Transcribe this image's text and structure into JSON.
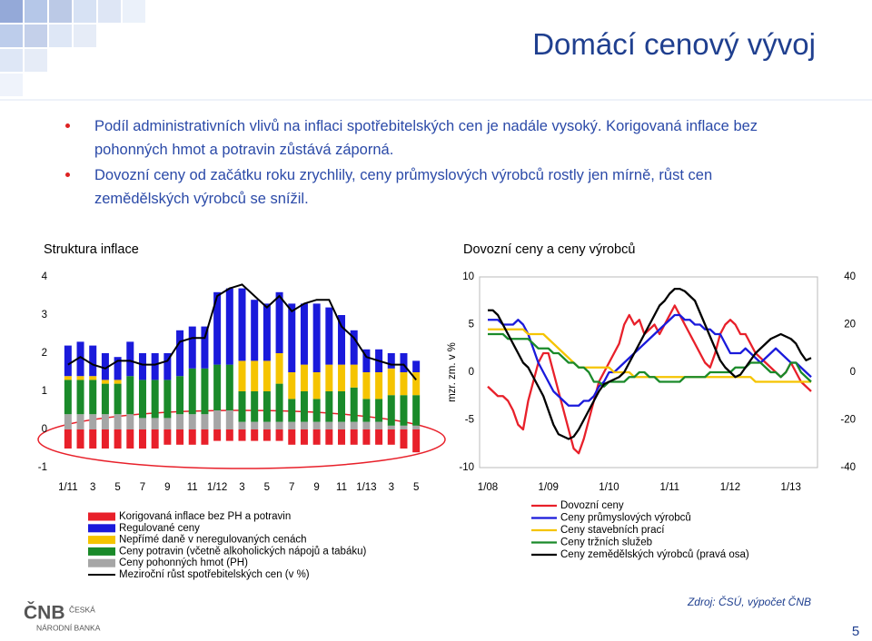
{
  "title": "Domácí cenový vývoj",
  "bullets": [
    "Podíl administrativních vlivů na inflaci spotřebitelských cen je nadále vysoký. Korigovaná inflace bez pohonných hmot a potravin zůstává záporná.",
    "Dovozní ceny od začátku roku zrychlily, ceny průmyslových výrobců rostly jen mírně, růst cen zemědělských výrobců se snížil."
  ],
  "source": "Zdroj: ČSÚ, výpočet ČNB",
  "page_number": "5",
  "logo": {
    "abbr": "ČNB",
    "lines": [
      "ČESKÁ",
      "NÁRODNÍ BANKA"
    ]
  },
  "chart_data": [
    {
      "type": "bar",
      "stacked": true,
      "title": "Struktura inflace",
      "categories": [
        "1/11",
        null,
        "3",
        null,
        "5",
        null,
        "7",
        null,
        "9",
        null,
        "11",
        null,
        "1/12",
        null,
        "3",
        null,
        "5",
        null,
        "7",
        null,
        "9",
        null,
        "11",
        null,
        "1/13",
        null,
        "3",
        null,
        "5"
      ],
      "ylim": [
        -1,
        4
      ],
      "yticks": [
        -1,
        0,
        1,
        2,
        3,
        4
      ],
      "grid": false,
      "series": [
        {
          "name": "Korigovaná inflace bez PH a potravin",
          "color": "#e8202a",
          "values": [
            -0.5,
            -0.5,
            -0.5,
            -0.5,
            -0.5,
            -0.5,
            -0.5,
            -0.5,
            -0.4,
            -0.4,
            -0.4,
            -0.4,
            -0.3,
            -0.3,
            -0.3,
            -0.3,
            -0.3,
            -0.3,
            -0.4,
            -0.4,
            -0.4,
            -0.4,
            -0.4,
            -0.4,
            -0.4,
            -0.4,
            -0.4,
            -0.5,
            -0.6
          ]
        },
        {
          "name": "Regulované ceny",
          "color": "#1a1adb",
          "values": [
            0.8,
            0.9,
            0.8,
            0.7,
            0.6,
            0.9,
            0.7,
            0.7,
            0.7,
            1.2,
            1.1,
            1.1,
            1.9,
            2.0,
            1.9,
            1.6,
            1.5,
            1.6,
            1.8,
            1.6,
            1.8,
            1.5,
            1.3,
            0.9,
            0.6,
            0.6,
            0.4,
            0.5,
            0.3
          ]
        },
        {
          "name": "Nepřímé daně v neregulovaných cenách",
          "color": "#f5c400",
          "values": [
            0.1,
            0.1,
            0.1,
            0.1,
            0.1,
            0,
            0,
            0,
            0,
            0,
            0,
            0,
            0,
            0,
            0.8,
            0.8,
            0.8,
            0.8,
            0.7,
            0.7,
            0.7,
            0.7,
            0.7,
            0.6,
            0.7,
            0.7,
            0.7,
            0.6,
            0.6
          ]
        },
        {
          "name": "Ceny potravin (včetně alkoholických nápojů a tabáku)",
          "color": "#1a8a2a",
          "values": [
            0.9,
            0.9,
            0.9,
            0.8,
            0.8,
            1.0,
            1.0,
            1.0,
            1.0,
            1.0,
            1.2,
            1.2,
            1.2,
            1.2,
            0.8,
            0.8,
            0.8,
            1.0,
            0.6,
            0.8,
            0.6,
            0.8,
            0.8,
            0.9,
            0.6,
            0.6,
            0.8,
            0.8,
            0.8
          ]
        },
        {
          "name": "Ceny pohonných hmot (PH)",
          "color": "#a6a6a6",
          "values": [
            0.4,
            0.4,
            0.4,
            0.4,
            0.4,
            0.4,
            0.3,
            0.3,
            0.3,
            0.4,
            0.4,
            0.4,
            0.5,
            0.5,
            0.2,
            0.2,
            0.2,
            0.2,
            0.2,
            0.2,
            0.2,
            0.2,
            0.2,
            0.2,
            0.2,
            0.2,
            0.1,
            0.1,
            0.1
          ]
        },
        {
          "name": "Meziroční růst spotřebitelských cen (v %)",
          "color": "#000000",
          "type": "line",
          "values": [
            1.7,
            1.9,
            1.7,
            1.6,
            1.8,
            1.8,
            1.7,
            1.7,
            1.8,
            2.3,
            2.4,
            2.4,
            3.5,
            3.7,
            3.8,
            3.5,
            3.2,
            3.5,
            3.1,
            3.3,
            3.4,
            3.4,
            2.7,
            2.4,
            1.9,
            1.8,
            1.7,
            1.7,
            1.3
          ]
        }
      ]
    },
    {
      "type": "line",
      "title": "Dovozní ceny a ceny výrobců",
      "y_label": "mzr. zm. v %",
      "categories": [
        "1/08",
        null,
        null,
        null,
        null,
        null,
        null,
        null,
        null,
        null,
        null,
        null,
        "1/09",
        null,
        null,
        null,
        null,
        null,
        null,
        null,
        null,
        null,
        null,
        null,
        "1/10",
        null,
        null,
        null,
        null,
        null,
        null,
        null,
        null,
        null,
        null,
        null,
        "1/11",
        null,
        null,
        null,
        null,
        null,
        null,
        null,
        null,
        null,
        null,
        null,
        "1/12",
        null,
        null,
        null,
        null,
        null,
        null,
        null,
        null,
        null,
        null,
        null,
        "1/13",
        null,
        null,
        null,
        null
      ],
      "ylim": [
        -10,
        10
      ],
      "yticks": [
        -10,
        -5,
        0,
        5,
        10
      ],
      "y2lim": [
        -40,
        40
      ],
      "y2ticks": [
        -40,
        -20,
        0,
        20,
        40
      ],
      "series": [
        {
          "name": "Dovozní ceny",
          "color": "#e8202a",
          "values": [
            -1.5,
            -2,
            -2.5,
            -2.5,
            -3,
            -4,
            -5.5,
            -6,
            -3,
            -1,
            1,
            2,
            2,
            0,
            -2,
            -4,
            -6,
            -8,
            -8.5,
            -7,
            -5,
            -3,
            -1,
            0,
            1,
            2,
            3,
            5,
            6,
            5,
            5.5,
            4,
            4.5,
            5,
            4,
            5,
            6,
            7,
            6,
            5,
            4,
            3,
            2,
            1,
            0.5,
            2,
            4,
            5,
            5.5,
            5,
            4,
            4,
            3,
            2,
            1.5,
            1,
            0.5,
            0,
            -0.5,
            0,
            1,
            0,
            -1,
            -1.5,
            -2
          ]
        },
        {
          "name": "Ceny průmyslových výrobců",
          "color": "#1a1adb",
          "values": [
            5.5,
            5.5,
            5.5,
            5,
            5,
            5,
            5.5,
            5,
            4,
            2.5,
            1,
            0,
            -1,
            -2,
            -2.5,
            -3,
            -3.5,
            -3.5,
            -3.5,
            -3,
            -3,
            -2.5,
            -1.5,
            -1,
            0,
            0,
            0.5,
            1,
            1.5,
            2,
            2.5,
            3,
            3.5,
            4,
            4.5,
            5,
            5.5,
            6,
            6,
            5.5,
            5.5,
            5,
            5,
            4.5,
            4.5,
            4,
            4,
            3,
            2,
            2,
            2,
            2.5,
            2,
            1.5,
            1,
            1.5,
            2,
            2.5,
            2,
            1.5,
            1,
            1,
            0.5,
            0,
            -0.5
          ]
        },
        {
          "name": "Ceny stavebních prací",
          "color": "#f5c400",
          "values": [
            4.5,
            4.5,
            4.5,
            4.5,
            4.5,
            4.5,
            4.5,
            4.5,
            4,
            4,
            4,
            4,
            3.5,
            3,
            2.5,
            2,
            1.5,
            1,
            0.5,
            0.5,
            0.5,
            0.5,
            0.5,
            0.5,
            0.5,
            0,
            0,
            0,
            0,
            -0.5,
            -0.5,
            -0.5,
            -0.5,
            -0.5,
            -0.5,
            -0.5,
            -0.5,
            -0.5,
            -0.5,
            -0.5,
            -0.5,
            -0.5,
            -0.5,
            -0.5,
            -0.5,
            -0.5,
            -0.5,
            -0.5,
            -0.5,
            -0.5,
            -0.5,
            -0.5,
            -0.5,
            -1,
            -1,
            -1,
            -1,
            -1,
            -1,
            -1,
            -1,
            -1,
            -1,
            -1,
            -1
          ]
        },
        {
          "name": "Ceny tržních služeb",
          "color": "#1a8a2a",
          "values": [
            4,
            4,
            4,
            4,
            3.5,
            3.5,
            3.5,
            3.5,
            3.5,
            3,
            2.5,
            2.5,
            2.5,
            2,
            2,
            1.5,
            1,
            1,
            0.5,
            0.5,
            0,
            -1,
            -1,
            -1.5,
            -1,
            -1,
            -1,
            -1,
            -0.5,
            -0.5,
            0,
            0,
            -0.5,
            -0.5,
            -1,
            -1,
            -1,
            -1,
            -1,
            -0.5,
            -0.5,
            -0.5,
            -0.5,
            -0.5,
            0,
            0,
            0,
            0,
            0,
            0.5,
            0.5,
            0.5,
            1,
            1,
            1,
            0.5,
            0,
            0,
            -0.5,
            0,
            1,
            1,
            0,
            -0.5,
            -1
          ]
        },
        {
          "name": "Ceny zemědělských výrobců (pravá osa)",
          "color": "#000000",
          "axis": "y2",
          "values": [
            26,
            26,
            24,
            20,
            16,
            12,
            8,
            4,
            2,
            -2,
            -6,
            -10,
            -16,
            -22,
            -26,
            -27,
            -28,
            -27,
            -24,
            -20,
            -16,
            -12,
            -8,
            -5,
            -4,
            -3,
            -2,
            0,
            4,
            8,
            12,
            16,
            20,
            24,
            28,
            30,
            33,
            35,
            35,
            34,
            32,
            30,
            25,
            20,
            15,
            10,
            5,
            2,
            0,
            -2,
            -1,
            2,
            5,
            8,
            10,
            12,
            14,
            15,
            16,
            15,
            14,
            12,
            8,
            5,
            6
          ]
        }
      ]
    }
  ]
}
